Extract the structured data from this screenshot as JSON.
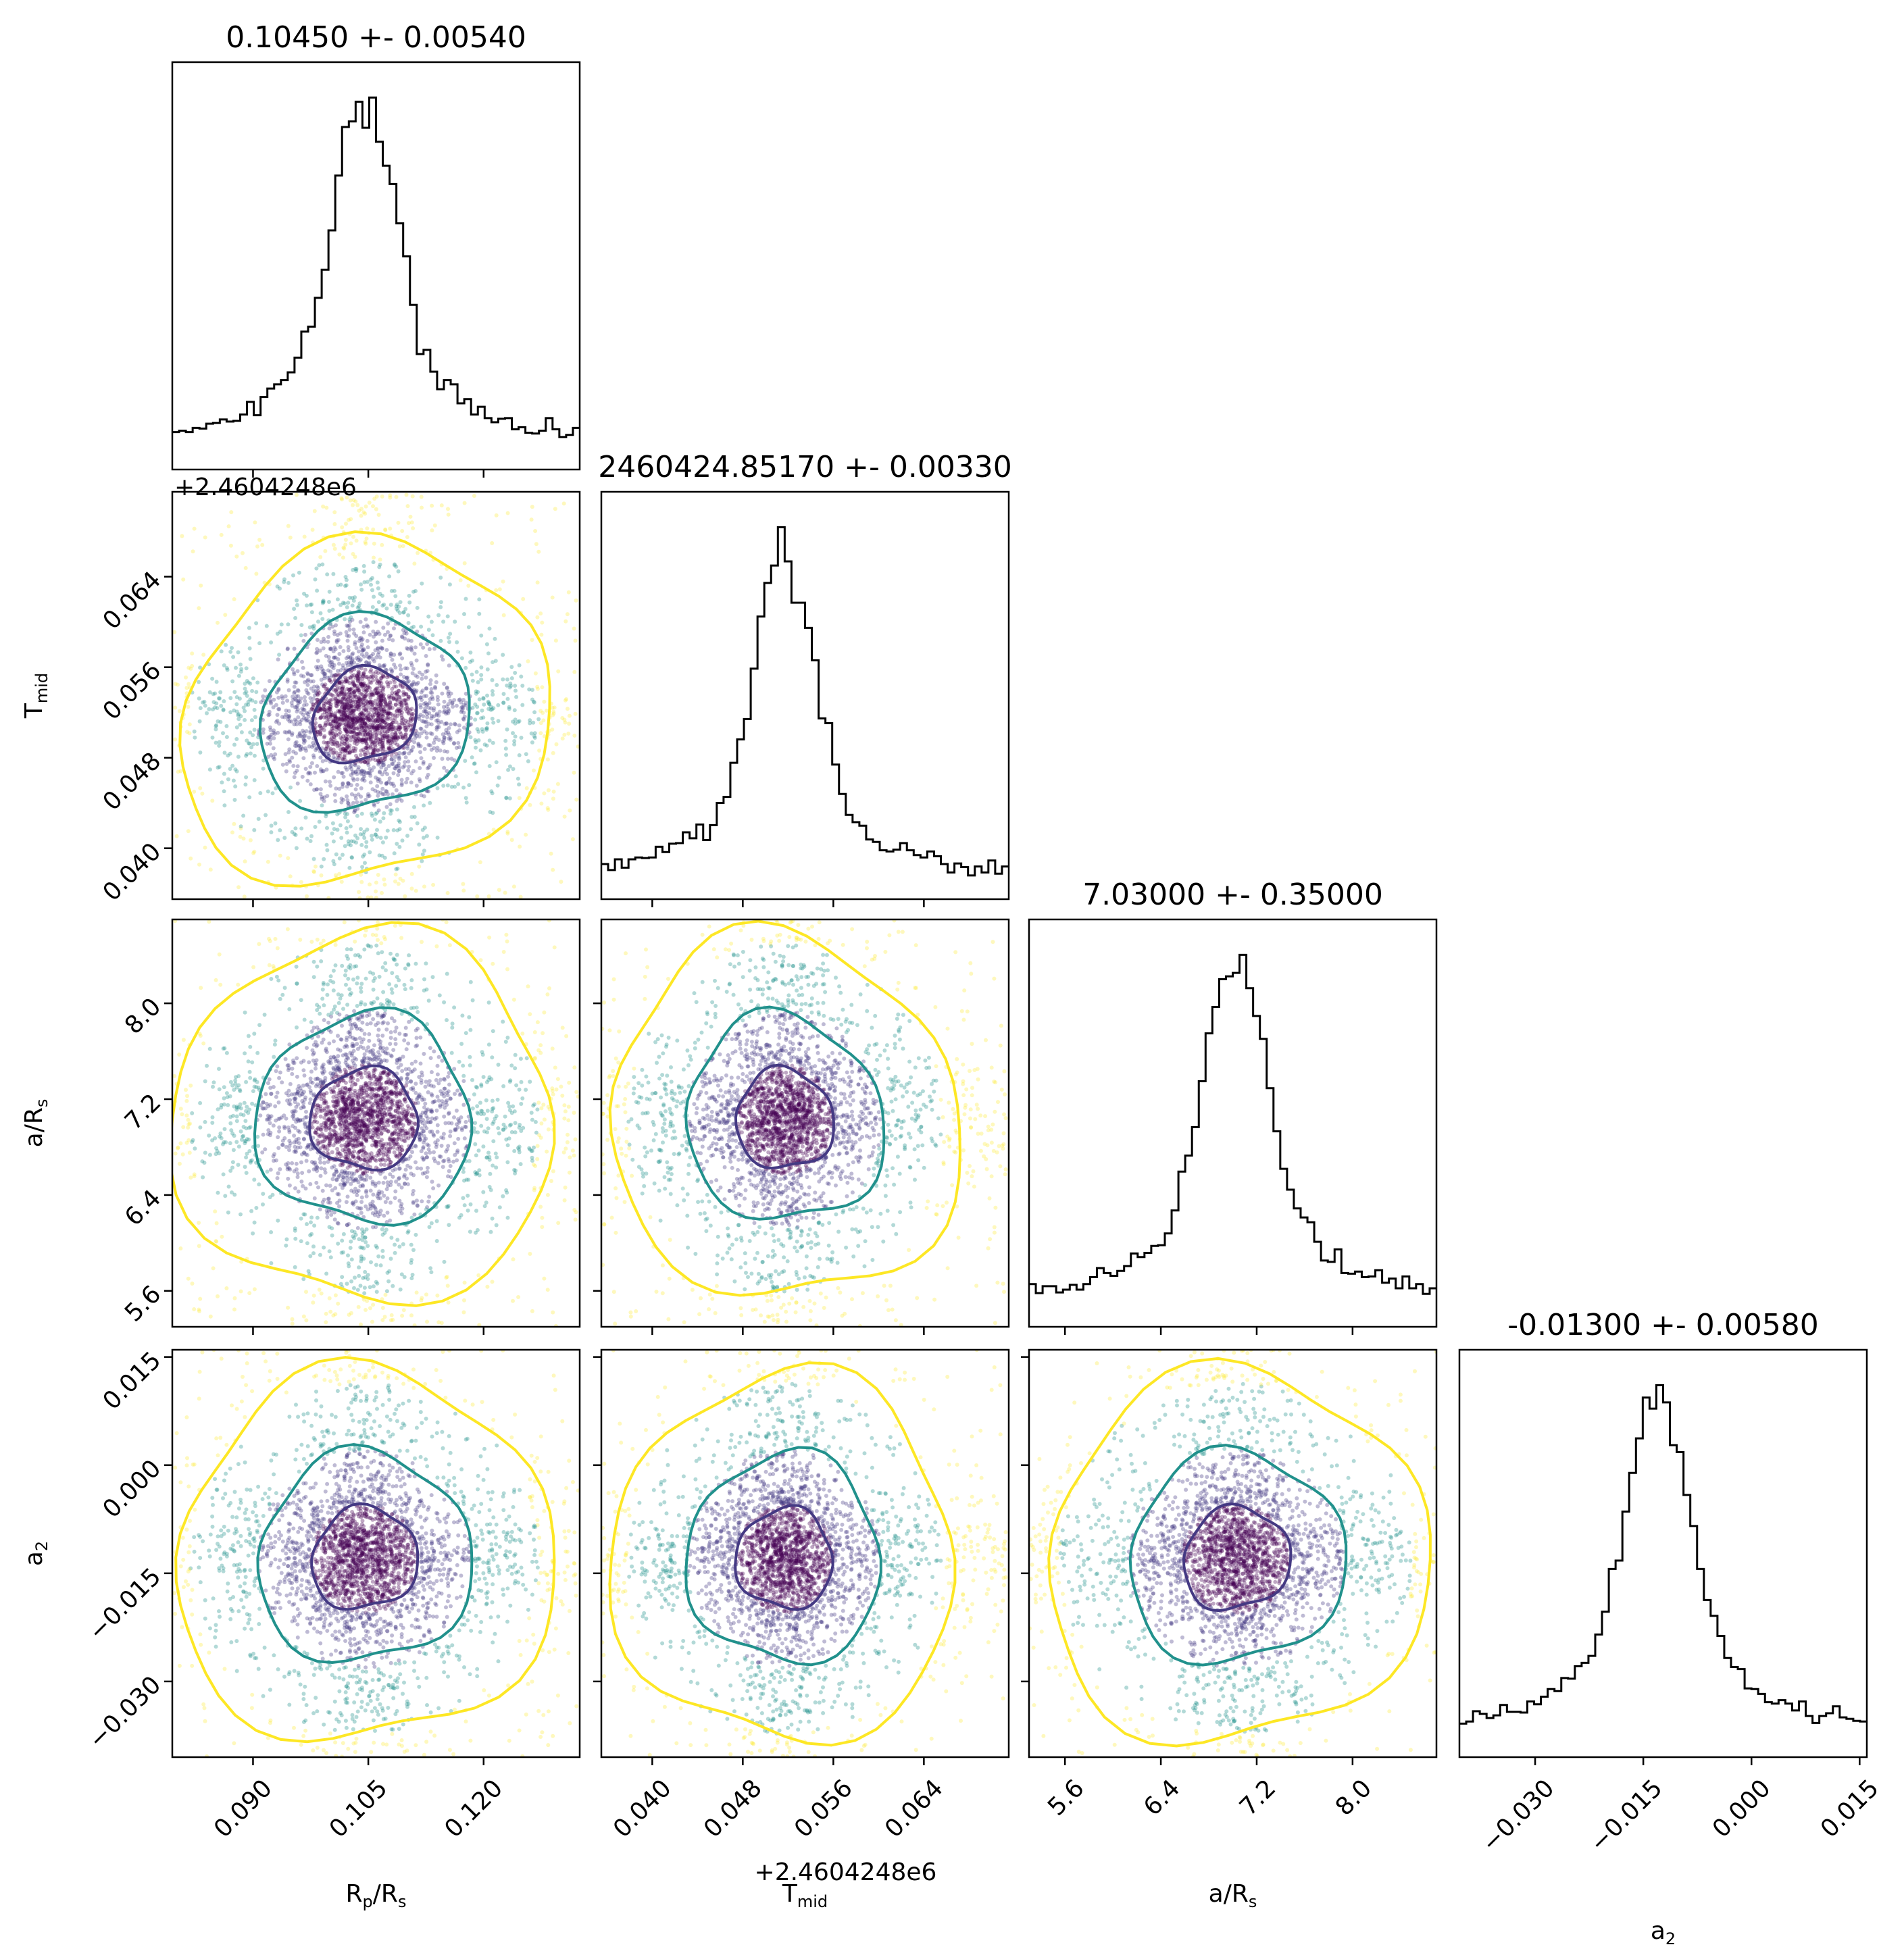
{
  "chart_data": {
    "type": "corner",
    "parameters": [
      {
        "label": "R",
        "sub": "p",
        "label2": "/R",
        "sub2": "s",
        "mean": 0.1045,
        "std": 0.0054,
        "range": [
          0.0795,
          0.1325
        ]
      },
      {
        "label": "T",
        "sub": "mid",
        "label2": "",
        "sub2": "",
        "mean": 2460424.8517,
        "std": 0.0033,
        "range": [
          2460424.8355,
          2460424.8715
        ]
      },
      {
        "label": "a/R",
        "sub": "s",
        "label2": "",
        "sub2": "",
        "mean": 7.03,
        "std": 0.35,
        "range": [
          5.3,
          8.7
        ]
      },
      {
        "label": "a",
        "sub": "2",
        "label2": "",
        "sub2": "",
        "mean": -0.013,
        "std": 0.0058,
        "range": [
          -0.0405,
          0.016
        ]
      }
    ],
    "offset_text": "+2.4604248e6",
    "offset_value": 2460424.8,
    "titles": [
      "0.10450 +- 0.00540",
      "2460424.85170 +- 0.00330",
      "7.03000 +- 0.35000",
      "-0.01300 +- 0.00580"
    ],
    "ticks": [
      {
        "values": [
          0.09,
          0.105,
          0.12
        ],
        "labels": [
          "0.090",
          "0.105",
          "0.120"
        ]
      },
      {
        "values": [
          0.04,
          0.048,
          0.056,
          0.064
        ],
        "labels": [
          "0.040",
          "0.048",
          "0.056",
          "0.064"
        ]
      },
      {
        "values": [
          5.6,
          6.4,
          7.2,
          8.0
        ],
        "labels": [
          "5.6",
          "6.4",
          "7.2",
          "8.0"
        ]
      },
      {
        "values": [
          -0.03,
          -0.015,
          0.0,
          0.015
        ],
        "labels": [
          "−0.030",
          "−0.015",
          "0.000",
          "0.015"
        ]
      }
    ],
    "contour_levels": [
      "1-sigma",
      "2-sigma",
      "3-sigma"
    ],
    "colors": {
      "sigma1": "#443983",
      "sigma2": "#21918c",
      "sigma3": "#fde725",
      "points_dense": "#440154",
      "hist": "#000000"
    }
  }
}
